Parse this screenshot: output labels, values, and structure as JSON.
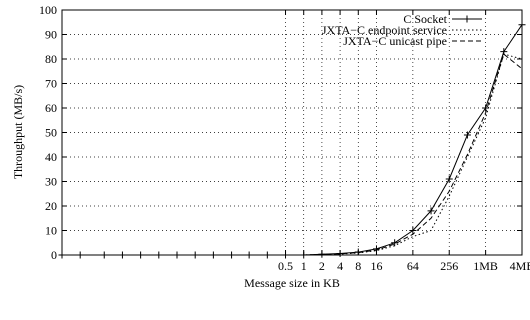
{
  "chart_data": {
    "type": "line",
    "xlabel": "Message size in KB",
    "ylabel": "Throughput (MB/s)",
    "xscale": "log2",
    "xlim": [
      0.0001,
      4096
    ],
    "ylim": [
      0,
      100
    ],
    "grid": true,
    "legend_position": "top-right",
    "x_ticks": [
      {
        "value": 0.5,
        "label": "0.5"
      },
      {
        "value": 1,
        "label": "1"
      },
      {
        "value": 2,
        "label": "2"
      },
      {
        "value": 4,
        "label": "4"
      },
      {
        "value": 8,
        "label": "8"
      },
      {
        "value": 16,
        "label": "16"
      },
      {
        "value": 64,
        "label": "64"
      },
      {
        "value": 256,
        "label": "256"
      },
      {
        "value": 1024,
        "label": "1MB"
      },
      {
        "value": 4096,
        "label": "4MB"
      }
    ],
    "y_ticks": [
      0,
      10,
      20,
      30,
      40,
      50,
      60,
      70,
      80,
      90,
      100
    ],
    "series": [
      {
        "name": "C Socket",
        "style": "solid",
        "marker": "plus",
        "x": [
          0.0001,
          0.0002,
          0.0005,
          0.001,
          0.002,
          0.004,
          0.008,
          0.016,
          0.032,
          0.064,
          0.125,
          0.25,
          0.5,
          1,
          2,
          4,
          8,
          16,
          32,
          64,
          128,
          256,
          512,
          1024,
          2048,
          4096
        ],
        "y": [
          0,
          0,
          0,
          0,
          0,
          0,
          0,
          0,
          0,
          0,
          0,
          0,
          0,
          0,
          0.3,
          0.6,
          1.2,
          2.5,
          5,
          10,
          18,
          31,
          49,
          60,
          83,
          94
        ]
      },
      {
        "name": "JXTA−C endpoint service",
        "style": "dotted",
        "marker": "none",
        "x": [
          0.0001,
          0.0002,
          0.0005,
          0.001,
          0.002,
          0.004,
          0.008,
          0.016,
          0.032,
          0.064,
          0.125,
          0.25,
          0.5,
          1,
          2,
          4,
          8,
          16,
          32,
          64,
          128,
          256,
          512,
          1024,
          2048,
          4096
        ],
        "y": [
          0,
          0,
          0,
          0,
          0,
          0,
          0,
          0,
          0,
          0,
          0,
          0,
          0,
          0,
          0.2,
          0.4,
          0.8,
          1.8,
          3.8,
          7.5,
          10,
          24,
          40,
          56,
          82,
          80
        ]
      },
      {
        "name": "JXTA−C unicast pipe",
        "style": "dashed",
        "marker": "none",
        "x": [
          0.0001,
          0.0002,
          0.0005,
          0.001,
          0.002,
          0.004,
          0.008,
          0.016,
          0.032,
          0.064,
          0.125,
          0.25,
          0.5,
          1,
          2,
          4,
          8,
          16,
          32,
          64,
          128,
          256,
          512,
          1024,
          2048,
          4096
        ],
        "y": [
          0,
          0,
          0,
          0,
          0,
          0,
          0,
          0,
          0,
          0,
          0,
          0,
          0,
          0,
          0.2,
          0.5,
          1,
          2,
          4.5,
          8.5,
          15,
          26,
          41,
          58,
          82,
          76
        ]
      }
    ]
  }
}
